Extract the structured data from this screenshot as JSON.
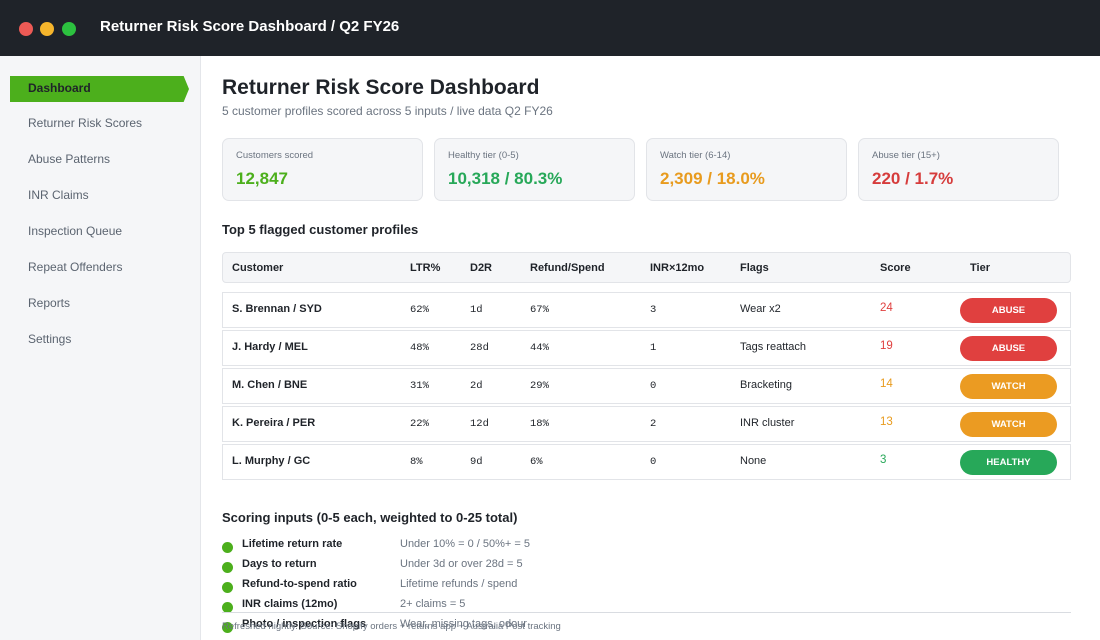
{
  "window": {
    "title": "Returner Risk Score Dashboard / Q2 FY26"
  },
  "sidebar": {
    "active": "Dashboard",
    "items": [
      "Returner Risk Scores",
      "Abuse Patterns",
      "INR Claims",
      "Inspection Queue",
      "Repeat Offenders",
      "Reports",
      "Settings"
    ]
  },
  "page": {
    "title": "Returner Risk Score Dashboard",
    "subtitle": "5 customer profiles scored across 5 inputs / live data Q2 FY26"
  },
  "stats": [
    {
      "label": "Customers scored",
      "value": "12,847",
      "color": "#4caf1c"
    },
    {
      "label": "Healthy tier (0-5)",
      "value": "10,318 / 80.3%",
      "color": "#27a859"
    },
    {
      "label": "Watch tier (6-14)",
      "value": "2,309 / 18.0%",
      "color": "#e89b1e"
    },
    {
      "label": "Abuse tier (15+)",
      "value": "220 / 1.7%",
      "color": "#d63c3c"
    }
  ],
  "table": {
    "title": "Top 5 flagged customer profiles",
    "headers": [
      "Customer",
      "LTR%",
      "D2R",
      "Refund/Spend",
      "INR×12mo",
      "Flags",
      "Score",
      "Tier"
    ],
    "rows": [
      {
        "customer": "S. Brennan / SYD",
        "ltr": "62%",
        "d2r": "1d",
        "refund": "67%",
        "inr": "3",
        "flags": "Wear x2",
        "score": "24",
        "tier": "ABUSE"
      },
      {
        "customer": "J. Hardy / MEL",
        "ltr": "48%",
        "d2r": "28d",
        "refund": "44%",
        "inr": "1",
        "flags": "Tags reattach",
        "score": "19",
        "tier": "ABUSE"
      },
      {
        "customer": "M. Chen / BNE",
        "ltr": "31%",
        "d2r": "2d",
        "refund": "29%",
        "inr": "0",
        "flags": "Bracketing",
        "score": "14",
        "tier": "WATCH"
      },
      {
        "customer": "K. Pereira / PER",
        "ltr": "22%",
        "d2r": "12d",
        "refund": "18%",
        "inr": "2",
        "flags": "INR cluster",
        "score": "13",
        "tier": "WATCH"
      },
      {
        "customer": "L. Murphy / GC",
        "ltr": "8%",
        "d2r": "9d",
        "refund": "6%",
        "inr": "0",
        "flags": "None",
        "score": "3",
        "tier": "HEALTHY"
      }
    ]
  },
  "tier_colors": {
    "ABUSE": "#e0403f",
    "WATCH": "#eb9b22",
    "HEALTHY": "#27a859"
  },
  "score_colors": {
    "ABUSE": "#e0403f",
    "WATCH": "#e89b1e",
    "HEALTHY": "#27a859"
  },
  "inputs": {
    "title": "Scoring inputs (0-5 each, weighted to 0-25 total)",
    "items": [
      {
        "name": "Lifetime return rate",
        "rule": "Under 10% = 0 / 50%+ = 5"
      },
      {
        "name": "Days to return",
        "rule": "Under 3d or over 28d = 5"
      },
      {
        "name": "Refund-to-spend ratio",
        "rule": "Lifetime refunds / spend"
      },
      {
        "name": "INR claims (12mo)",
        "rule": "2+ claims = 5"
      },
      {
        "name": "Photo / inspection flags",
        "rule": "Wear, missing tags, odour"
      }
    ]
  },
  "footer": {
    "text": "Refreshed nightly. Source: Shopify orders + returns app + Australia Post tracking"
  }
}
